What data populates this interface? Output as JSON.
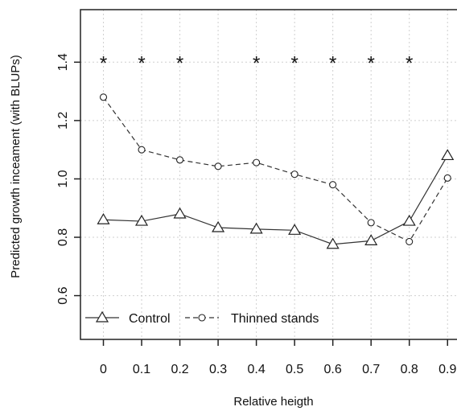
{
  "chart_data": {
    "type": "line",
    "title": "",
    "xlabel": "Relative heigth",
    "ylabel": "Predicted growth inceament (with BLUPs)",
    "x": [
      0,
      0.1,
      0.2,
      0.3,
      0.4,
      0.5,
      0.6,
      0.7,
      0.8,
      0.9
    ],
    "x_tick_labels": [
      "0",
      "0.1",
      "0.2",
      "0.3",
      "0.4",
      "0.5",
      "0.6",
      "0.7",
      "0.8",
      "0.9"
    ],
    "y_tick_labels": [
      "0.6",
      "0.8",
      "1.0",
      "1.2",
      "1.4"
    ],
    "y_ticks": [
      0.6,
      0.8,
      1.0,
      1.2,
      1.4
    ],
    "xlim": [
      -0.06,
      0.95
    ],
    "ylim": [
      0.45,
      1.58
    ],
    "grid": true,
    "series": [
      {
        "name": "Control",
        "marker": "triangle",
        "line_style": "solid",
        "color": "#333333",
        "values": [
          0.86,
          0.855,
          0.88,
          0.833,
          0.828,
          0.824,
          0.776,
          0.788,
          0.855,
          1.08
        ]
      },
      {
        "name": "Thinned stands",
        "marker": "circle",
        "line_style": "dashed",
        "color": "#333333",
        "values": [
          1.28,
          1.1,
          1.065,
          1.043,
          1.056,
          1.016,
          0.98,
          0.85,
          0.785,
          1.003
        ]
      }
    ],
    "significance_markers": {
      "symbol": "*",
      "y": 1.4,
      "x": [
        0,
        0.1,
        0.2,
        0.4,
        0.5,
        0.6,
        0.7,
        0.8
      ]
    },
    "legend": {
      "placement": "bottom-left",
      "entries": [
        "Control",
        "Thinned stands"
      ]
    }
  }
}
